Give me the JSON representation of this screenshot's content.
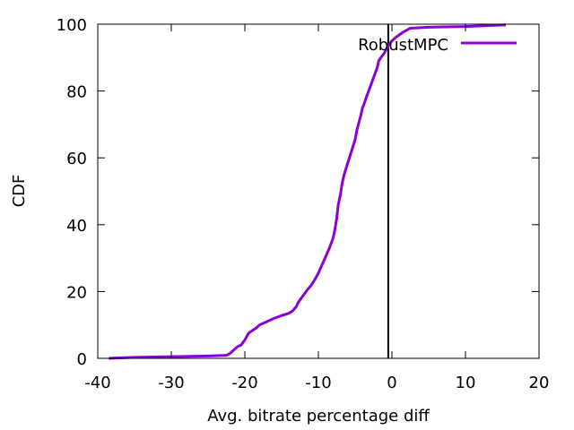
{
  "chart_data": {
    "type": "line",
    "title": "",
    "xlabel": "Avg. bitrate percentage diff",
    "ylabel": "CDF",
    "xlim": [
      -40,
      20
    ],
    "ylim": [
      0,
      100
    ],
    "x_ticks": [
      -40,
      -30,
      -20,
      -10,
      0,
      10,
      20
    ],
    "x_tick_labels": [
      "-40",
      "-30",
      "-20",
      "-10",
      "0",
      "10",
      "20"
    ],
    "y_ticks": [
      0,
      20,
      40,
      60,
      80,
      100
    ],
    "y_tick_labels": [
      "0",
      "20",
      "40",
      "60",
      "80",
      "100"
    ],
    "grid": false,
    "legend_position": "top-right",
    "reference_line_x": -0.5,
    "series": [
      {
        "name": "RobustMPC",
        "color": "#8b00d4",
        "points": [
          [
            -38.5,
            0
          ],
          [
            -35,
            0.3
          ],
          [
            -30,
            0.5
          ],
          [
            -25,
            0.7
          ],
          [
            -22.5,
            0.9
          ],
          [
            -22,
            1.5
          ],
          [
            -21.5,
            2.5
          ],
          [
            -21,
            3.5
          ],
          [
            -20.5,
            4
          ],
          [
            -20,
            5.5
          ],
          [
            -19.5,
            7.5
          ],
          [
            -19,
            8.3
          ],
          [
            -18.5,
            9
          ],
          [
            -18,
            10
          ],
          [
            -17,
            11
          ],
          [
            -16,
            12
          ],
          [
            -15,
            12.8
          ],
          [
            -14,
            13.5
          ],
          [
            -13.5,
            14.2
          ],
          [
            -13,
            15.5
          ],
          [
            -12.8,
            16.5
          ],
          [
            -12.5,
            17.5
          ],
          [
            -12,
            19
          ],
          [
            -11.5,
            20.5
          ],
          [
            -11,
            21.8
          ],
          [
            -10.5,
            23.5
          ],
          [
            -10,
            25.5
          ],
          [
            -9.5,
            28
          ],
          [
            -9,
            30.5
          ],
          [
            -8.5,
            33
          ],
          [
            -8,
            36
          ],
          [
            -7.8,
            38
          ],
          [
            -7.5,
            42
          ],
          [
            -7.3,
            46
          ],
          [
            -7,
            49
          ],
          [
            -6.8,
            52
          ],
          [
            -6.5,
            55
          ],
          [
            -6,
            58.5
          ],
          [
            -5.5,
            62
          ],
          [
            -5,
            65.5
          ],
          [
            -4.8,
            68
          ],
          [
            -4.5,
            70.5
          ],
          [
            -4.2,
            73
          ],
          [
            -4,
            75
          ],
          [
            -3.8,
            76
          ],
          [
            -3.5,
            78
          ],
          [
            -3,
            81
          ],
          [
            -2.5,
            84
          ],
          [
            -2,
            87
          ],
          [
            -1.8,
            89
          ],
          [
            -1.5,
            90
          ],
          [
            -1,
            91.5
          ],
          [
            -0.5,
            93.5
          ],
          [
            0,
            95
          ],
          [
            0.5,
            96
          ],
          [
            1,
            96.8
          ],
          [
            1.5,
            97.6
          ],
          [
            2,
            98.2
          ],
          [
            2.5,
            98.8
          ],
          [
            5,
            99.1
          ],
          [
            10,
            99.3
          ],
          [
            15.5,
            99.8
          ]
        ]
      }
    ]
  }
}
